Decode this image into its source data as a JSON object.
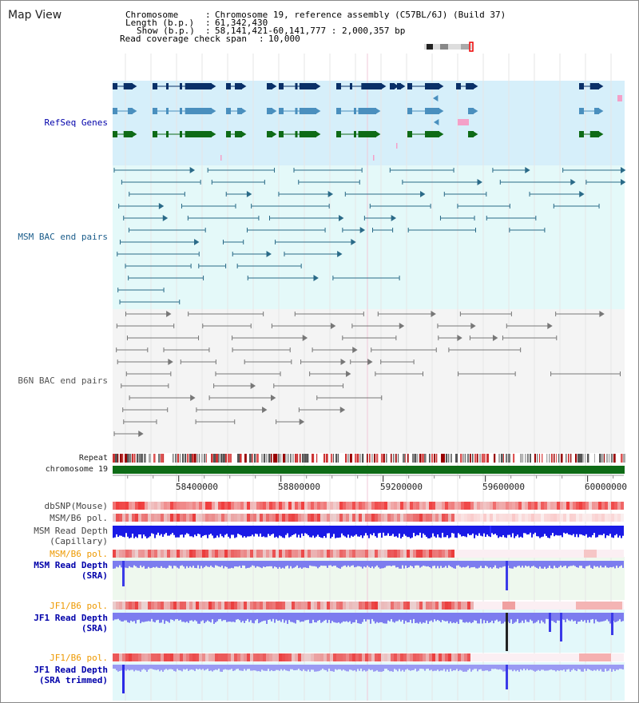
{
  "panel_title": "Map View",
  "info": {
    "chromosome_label": "Chromosome",
    "chromosome_value": "Chromosome 19, reference assembly (C57BL/6J) (Build 37)",
    "length_label": "Length (b.p.)",
    "length_value": "61,342,430",
    "show_label": "Show (b.p.)",
    "show_value": "58,141,421-60,141,777 : 2,000,357 bp",
    "coverage_label": "Read coverage check span",
    "coverage_value": "10,000"
  },
  "tracks": {
    "refseq": "RefSeq Genes",
    "msm_bac": "MSM BAC end pairs",
    "b6n_bac": "B6N BAC end pairs",
    "repeat": "Repeat",
    "chromosome": "chromosome 19",
    "dbsnp": "dbSNP(Mouse)",
    "msm_b6_pol_1": "MSM/B6 pol.",
    "msm_depth_cap_1": "MSM Read Depth",
    "msm_depth_cap_2": "(Capillary)",
    "msm_b6_pol_2": "MSM/B6 pol.",
    "msm_depth_sra_1": "MSM Read Depth",
    "msm_depth_sra_2": "(SRA)",
    "jf1_b6_pol_1": "JF1/B6 pol.",
    "jf1_depth_sra_1": "JF1 Read Depth",
    "jf1_depth_sra_2": "(SRA)",
    "jf1_b6_pol_2": "JF1/B6 pol.",
    "jf1_depth_trim_1": "JF1 Read Depth",
    "jf1_depth_trim_2": "(SRA trimmed)"
  },
  "axis": {
    "ticks": [
      "58400000",
      "58800000",
      "59200000",
      "59600000",
      "60000000"
    ],
    "tick_values": [
      58400000,
      58800000,
      59200000,
      59600000,
      60000000
    ],
    "range": [
      58141421,
      60141777
    ]
  },
  "colors": {
    "refseq_bg": "#d6effa",
    "bac_bg": "#e4f9f9",
    "b6n_bg": "#f4f4f4",
    "gene_dark": "#0a3068",
    "gene_mid": "#4a8fbe",
    "gene_green": "#0e6b16",
    "chrom_green": "#0e6b16",
    "msm_line": "#2a6a88",
    "b6n_line": "#777777",
    "depth_blue": "#1a1ae6",
    "sra_blue": "#7c7cef",
    "label_blue": "#0000aa",
    "label_orange": "#ee9900"
  }
}
